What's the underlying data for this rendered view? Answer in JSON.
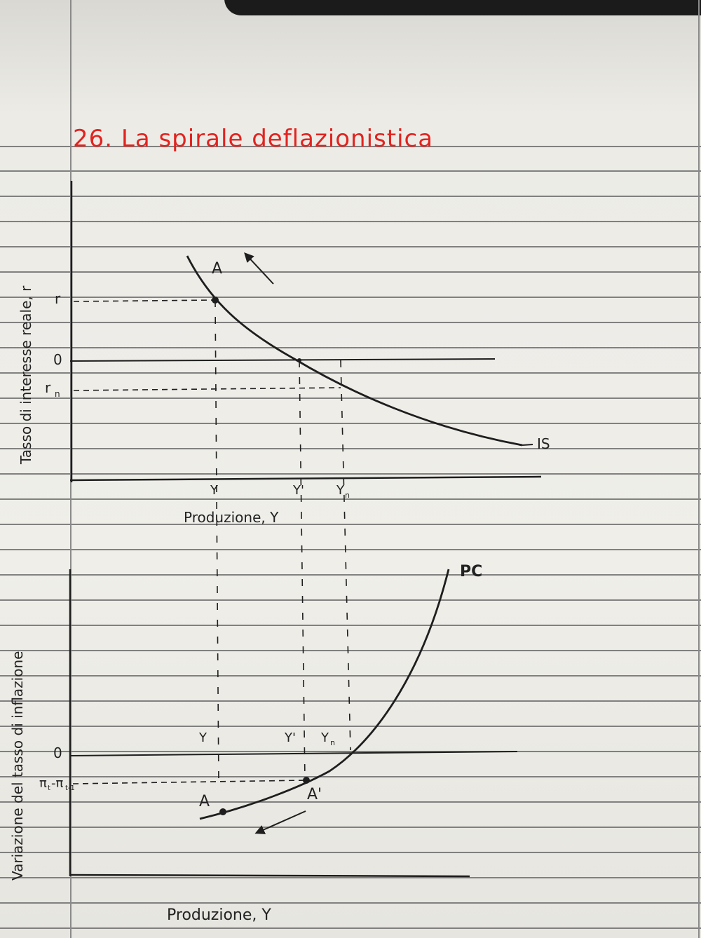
{
  "title": "26. La spirale deflazionistica",
  "colors": {
    "title": "#e2231f",
    "ink": "#1e1e1e",
    "rule": "#6d6d6d"
  },
  "top_panel": {
    "y_axis_label": "Tasso di interesse reale, r",
    "x_axis_label": "Produzione, Y",
    "y_ticks": [
      "r",
      "0",
      "r",
      "n"
    ],
    "x_ticks": [
      "Y",
      "Y'",
      "Y",
      "n"
    ],
    "curve_label": "IS",
    "point_label": "A"
  },
  "bottom_panel": {
    "y_axis_label": "Variazione del tasso di inflazione",
    "x_axis_label": "Produzione, Y",
    "y_ticks": [
      "0",
      "π",
      "t",
      "-π",
      "t-1"
    ],
    "x_ticks": [
      "Y",
      "Y'",
      "Y",
      "n"
    ],
    "curve_label": "PC",
    "point_labels": [
      "A",
      "A'"
    ]
  }
}
